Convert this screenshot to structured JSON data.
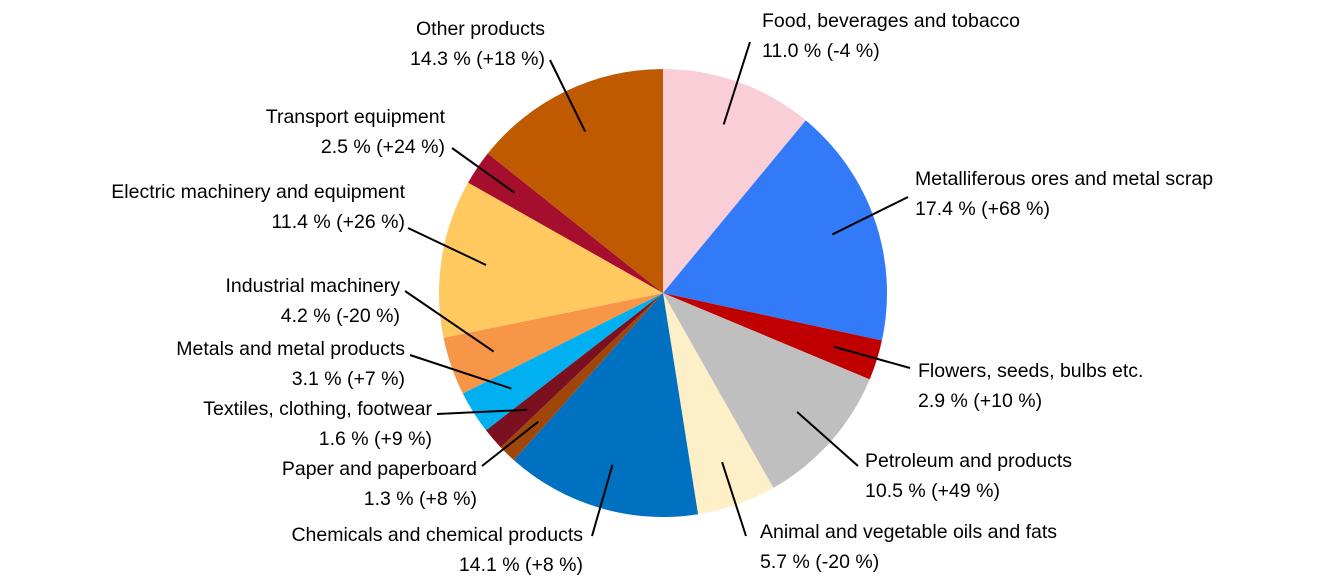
{
  "chart_data": {
    "type": "pie",
    "categories": [
      "Food, beverages and tobacco",
      "Metalliferous ores and metal scrap",
      "Flowers, seeds, bulbs etc.",
      "Petroleum and products",
      "Animal and vegetable oils and fats",
      "Chemicals and chemical products",
      "Paper and paperboard",
      "Textiles, clothing, footwear",
      "Metals and metal products",
      "Industrial machinery",
      "Electric machinery and equipment",
      "Transport equipment",
      "Other products"
    ],
    "values": [
      11.0,
      17.4,
      2.9,
      10.5,
      5.7,
      14.1,
      1.3,
      1.6,
      3.1,
      4.2,
      11.4,
      2.5,
      14.3
    ],
    "value_labels": [
      "11.0 % (-4 %)",
      "17.4 % (+68 %)",
      "2.9 % (+10 %)",
      "10.5 % (+49 %)",
      "5.7 % (-20 %)",
      "14.1 % (+8 %)",
      "1.3 % (+8 %)",
      "1.6 % (+9 %)",
      "3.1 % (+7 %)",
      "4.2 % (-20 %)",
      "11.4 % (+26 %)",
      "2.5 % (+24 %)",
      "14.3 % (+18 %)"
    ],
    "colors": [
      "#f9ced6",
      "#337af9",
      "#c00000",
      "#bfbfbf",
      "#fdefc8",
      "#0070c0",
      "#a0460a",
      "#7a1020",
      "#00b0f0",
      "#f79646",
      "#ffc960",
      "#a50f2d",
      "#c05a00"
    ]
  }
}
